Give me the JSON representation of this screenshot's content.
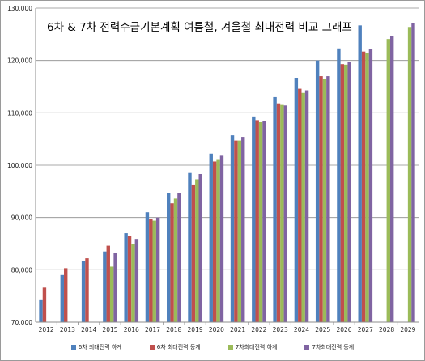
{
  "chart_data": {
    "type": "bar",
    "title": "6차 & 7차 전력수급기본계획 여름철, 겨울철 최대전력 비교 그래프",
    "xlabel": "",
    "ylabel": "",
    "ylim": [
      70000,
      130000
    ],
    "yticks": [
      "70,000",
      "80,000",
      "90,000",
      "100,000",
      "110,000",
      "120,000",
      "130,000"
    ],
    "ytick_values": [
      70000,
      80000,
      90000,
      100000,
      110000,
      120000,
      130000
    ],
    "grid": true,
    "legend_position": "bottom",
    "categories": [
      "2012",
      "2013",
      "2014",
      "2015",
      "2016",
      "2017",
      "2018",
      "2019",
      "2020",
      "2021",
      "2022",
      "2023",
      "2024",
      "2025",
      "2026",
      "2027",
      "2028",
      "2029"
    ],
    "series": [
      {
        "name": "6차 최대전력 하계",
        "color": "#4f81bd",
        "values": [
          74200,
          79000,
          81700,
          83500,
          87000,
          91000,
          94700,
          98500,
          102200,
          105700,
          109300,
          113000,
          116700,
          120000,
          122300,
          126700,
          null,
          null
        ]
      },
      {
        "name": "6차 최대전력 동계",
        "color": "#c0504d",
        "values": [
          76600,
          80300,
          82200,
          84600,
          86500,
          89700,
          92700,
          96300,
          100700,
          104700,
          108600,
          111800,
          114600,
          117000,
          119300,
          121700,
          null,
          null
        ]
      },
      {
        "name": "7차최대전력 하계",
        "color": "#9bbb59",
        "values": [
          null,
          null,
          null,
          80600,
          85000,
          89400,
          93600,
          97300,
          101000,
          104700,
          108200,
          111500,
          113800,
          116500,
          119200,
          121400,
          124100,
          126400
        ]
      },
      {
        "name": "7차최대전력 동계",
        "color": "#8064a2",
        "values": [
          null,
          null,
          null,
          83300,
          85900,
          90000,
          94600,
          98300,
          101800,
          105400,
          108500,
          111400,
          114300,
          117000,
          119700,
          122200,
          124700,
          127100
        ]
      }
    ]
  }
}
